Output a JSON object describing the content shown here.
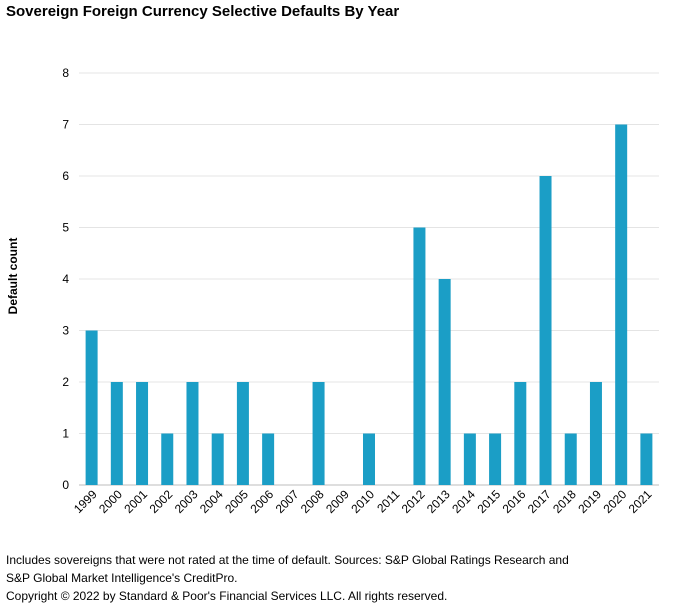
{
  "chart_data": {
    "type": "bar",
    "title": "Sovereign Foreign Currency Selective Defaults By Year",
    "xlabel": "",
    "ylabel": "Default count",
    "ylim": [
      0,
      8
    ],
    "yticks": [
      0,
      1,
      2,
      3,
      4,
      5,
      6,
      7,
      8
    ],
    "grid": true,
    "legend": "none",
    "bar_color": "#1b9ec6",
    "categories": [
      "1999",
      "2000",
      "2001",
      "2002",
      "2003",
      "2004",
      "2005",
      "2006",
      "2007",
      "2008",
      "2009",
      "2010",
      "2011",
      "2012",
      "2013",
      "2014",
      "2015",
      "2016",
      "2017",
      "2018",
      "2019",
      "2020",
      "2021"
    ],
    "values": [
      3,
      2,
      2,
      1,
      2,
      1,
      2,
      1,
      0,
      2,
      0,
      1,
      0,
      5,
      4,
      1,
      1,
      2,
      6,
      1,
      2,
      7,
      1
    ]
  },
  "footnote": {
    "line1": "Includes sovereigns that were not rated at the time of default. Sources: S&P Global Ratings Research and",
    "line2": "S&P Global Market Intelligence's CreditPro.",
    "copyright": "Copyright © 2022 by Standard & Poor's Financial Services LLC. All rights reserved."
  }
}
